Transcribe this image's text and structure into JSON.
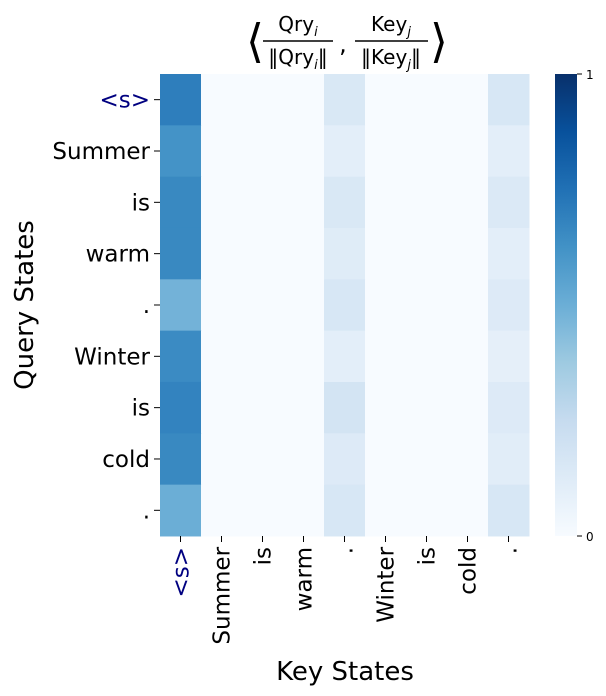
{
  "chart_data": {
    "type": "heatmap",
    "title": {
      "lhs_num": "Qry",
      "lhs_num_sub": "i",
      "lhs_den": "‖Qry",
      "lhs_den_sub": "i",
      "lhs_den_end": "‖",
      "comma": ",",
      "rhs_num": "Key",
      "rhs_num_sub": "j",
      "rhs_den": "‖Key",
      "rhs_den_sub": "j",
      "rhs_den_end": "‖",
      "open_angle": "⟨",
      "close_angle": "⟩"
    },
    "xlabel": "Key States",
    "ylabel": "Query States",
    "x_tokens": [
      "<s>",
      "Summer",
      "is",
      "warm",
      ".",
      "Winter",
      "is",
      "cold",
      "."
    ],
    "y_tokens": [
      "<s>",
      "Summer",
      "is",
      "warm",
      ".",
      "Winter",
      "is",
      "cold",
      "."
    ],
    "special_token_color": "#000080",
    "colormap": "Blues",
    "vmin": 0,
    "vmax": 1,
    "colorbar_ticks": [
      "0",
      "1"
    ],
    "values": [
      [
        0.7,
        0.0,
        0.0,
        0.0,
        0.15,
        0.0,
        0.0,
        0.0,
        0.16
      ],
      [
        0.62,
        0.0,
        0.0,
        0.0,
        0.1,
        0.0,
        0.0,
        0.0,
        0.1
      ],
      [
        0.66,
        0.0,
        0.0,
        0.0,
        0.15,
        0.0,
        0.0,
        0.0,
        0.14
      ],
      [
        0.66,
        0.0,
        0.0,
        0.0,
        0.12,
        0.0,
        0.0,
        0.0,
        0.1
      ],
      [
        0.48,
        0.0,
        0.0,
        0.0,
        0.16,
        0.0,
        0.0,
        0.0,
        0.13
      ],
      [
        0.65,
        0.0,
        0.0,
        0.0,
        0.1,
        0.0,
        0.0,
        0.0,
        0.09
      ],
      [
        0.68,
        0.0,
        0.0,
        0.0,
        0.18,
        0.0,
        0.0,
        0.0,
        0.13
      ],
      [
        0.66,
        0.0,
        0.0,
        0.0,
        0.13,
        0.0,
        0.0,
        0.0,
        0.11
      ],
      [
        0.5,
        0.0,
        0.0,
        0.0,
        0.16,
        0.0,
        0.0,
        0.0,
        0.16
      ]
    ]
  }
}
